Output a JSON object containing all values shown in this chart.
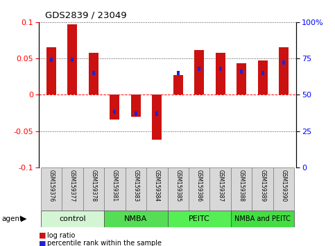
{
  "title": "GDS2839 / 23049",
  "samples": [
    "GSM159376",
    "GSM159377",
    "GSM159378",
    "GSM159381",
    "GSM159383",
    "GSM159384",
    "GSM159385",
    "GSM159386",
    "GSM159387",
    "GSM159388",
    "GSM159389",
    "GSM159390"
  ],
  "log_ratio": [
    0.065,
    0.097,
    0.058,
    -0.034,
    -0.03,
    -0.062,
    0.027,
    0.062,
    0.058,
    0.043,
    0.047,
    0.065
  ],
  "percentile": [
    0.74,
    0.74,
    0.65,
    0.38,
    0.37,
    0.37,
    0.65,
    0.68,
    0.68,
    0.66,
    0.65,
    0.72
  ],
  "groups": [
    {
      "label": "control",
      "start": 0,
      "end": 3,
      "color": "#d4f5d4"
    },
    {
      "label": "NMBA",
      "start": 3,
      "end": 6,
      "color": "#55dd55"
    },
    {
      "label": "PEITC",
      "start": 6,
      "end": 9,
      "color": "#55ee55"
    },
    {
      "label": "NMBA and PEITC",
      "start": 9,
      "end": 12,
      "color": "#44dd44"
    }
  ],
  "ylim": [
    -0.1,
    0.1
  ],
  "yticks_left": [
    -0.1,
    -0.05,
    0,
    0.05,
    0.1
  ],
  "ytick_labels_left": [
    "-0.1",
    "-0.05",
    "0",
    "0.05",
    "0.1"
  ],
  "ytick_labels_right": [
    "0",
    "25",
    "50",
    "75",
    "100%"
  ],
  "bar_color": "#cc1111",
  "percentile_color": "#2222cc",
  "bar_width": 0.45,
  "percentile_bar_width": 0.12,
  "percentile_bar_height": 0.006
}
